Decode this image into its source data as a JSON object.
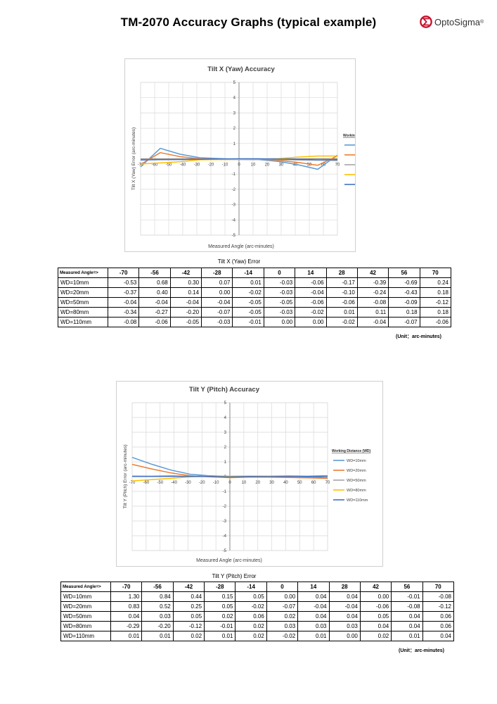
{
  "page": {
    "title": "TM-2070 Accuracy Graphs (typical example)",
    "logo_text": "OptoSigma",
    "logo_reg": "®",
    "brand_color": "#c8102e"
  },
  "series_colors": [
    "#5b9bd5",
    "#ed7d31",
    "#a5a5a5",
    "#ffc000",
    "#4472c4"
  ],
  "chart_data": [
    {
      "type": "line",
      "title": "Tilt X (Yaw) Accuracy",
      "xlabel": "Measured Angle (arc-minutes)",
      "ylabel": "Tilt X (Yaw) Error  (arc-minutes)",
      "x_ticks": [
        -70,
        -60,
        -50,
        -40,
        -30,
        -20,
        -10,
        0,
        10,
        20,
        30,
        40,
        50,
        60,
        70
      ],
      "y_ticks": [
        -5,
        -4,
        -3,
        -2,
        -1,
        0,
        1,
        2,
        3,
        4,
        5
      ],
      "y_tick_labels": [
        "-5",
        "-4",
        "-3",
        "-2",
        "-1",
        "",
        "1",
        "2",
        "3",
        "4",
        "5"
      ],
      "xlim": [
        -70,
        70
      ],
      "ylim": [
        -5,
        5
      ],
      "grid": true,
      "legend_title": "Working Distance (WD)",
      "legend_position": "right",
      "x": [
        -70,
        -56,
        -42,
        -28,
        -14,
        0,
        14,
        28,
        42,
        56,
        70
      ],
      "series": [
        {
          "name": "WD=10mm",
          "values": [
            -0.53,
            0.68,
            0.3,
            0.07,
            0.01,
            -0.03,
            -0.06,
            -0.17,
            -0.39,
            -0.69,
            0.24
          ]
        },
        {
          "name": "WD=20mm",
          "values": [
            -0.37,
            0.4,
            0.14,
            0.0,
            -0.02,
            -0.03,
            -0.04,
            -0.1,
            -0.24,
            -0.43,
            0.18
          ]
        },
        {
          "name": "WD=50mm",
          "values": [
            -0.04,
            -0.04,
            -0.04,
            -0.04,
            -0.05,
            -0.05,
            -0.06,
            -0.06,
            -0.08,
            -0.09,
            -0.12
          ]
        },
        {
          "name": "WD=80mm",
          "values": [
            -0.34,
            -0.27,
            -0.2,
            -0.07,
            -0.05,
            -0.03,
            -0.02,
            0.01,
            0.11,
            0.18,
            0.18
          ]
        },
        {
          "name": "WD=110mm",
          "values": [
            -0.08,
            -0.06,
            -0.05,
            -0.03,
            -0.01,
            0.0,
            0.0,
            -0.02,
            -0.04,
            -0.07,
            -0.06
          ]
        }
      ]
    },
    {
      "type": "line",
      "title": "Tilt Y (Pitch) Accuracy",
      "xlabel": "Measured Angle (arc-minutes)",
      "ylabel": "Tilt Y (Pitch) Error  (arc-minutes)",
      "x_ticks": [
        -70,
        -60,
        -50,
        -40,
        -30,
        -20,
        -10,
        0,
        10,
        20,
        30,
        40,
        50,
        60,
        70
      ],
      "y_ticks": [
        -5,
        -4,
        -3,
        -2,
        -1,
        0,
        1,
        2,
        3,
        4,
        5
      ],
      "y_tick_labels": [
        "-5",
        "-4",
        "-3",
        "-2",
        "-1",
        "0",
        "1",
        "2",
        "3",
        "4",
        "5"
      ],
      "xlim": [
        -70,
        70
      ],
      "ylim": [
        -5,
        5
      ],
      "grid": true,
      "legend_title": "Working Distance (WD)",
      "legend_position": "right",
      "x": [
        -70,
        -56,
        -42,
        -28,
        -14,
        0,
        14,
        28,
        42,
        56,
        70
      ],
      "series": [
        {
          "name": "WD=10mm",
          "values": [
            1.3,
            0.84,
            0.44,
            0.15,
            0.05,
            0.0,
            0.04,
            0.04,
            0.0,
            -0.01,
            -0.08
          ]
        },
        {
          "name": "WD=20mm",
          "values": [
            0.83,
            0.52,
            0.25,
            0.05,
            -0.02,
            -0.07,
            -0.04,
            -0.04,
            -0.06,
            -0.08,
            -0.12
          ]
        },
        {
          "name": "WD=50mm",
          "values": [
            0.04,
            0.03,
            0.05,
            0.02,
            0.06,
            0.02,
            0.04,
            0.04,
            0.05,
            0.04,
            0.06
          ]
        },
        {
          "name": "WD=80mm",
          "values": [
            -0.29,
            -0.2,
            -0.12,
            -0.01,
            0.02,
            0.03,
            0.03,
            0.03,
            0.04,
            0.04,
            0.06
          ]
        },
        {
          "name": "WD=110mm",
          "values": [
            0.01,
            0.01,
            0.02,
            0.01,
            0.02,
            -0.02,
            0.01,
            0.0,
            0.02,
            0.01,
            0.04
          ]
        }
      ]
    }
  ],
  "tables": [
    {
      "caption": "Tilt X (Yaw) Error",
      "corner": "Measured Angle=>",
      "headers": [
        "-70",
        "-56",
        "-42",
        "-28",
        "-14",
        "0",
        "14",
        "28",
        "42",
        "56",
        "70"
      ],
      "rows": [
        {
          "label": "WD=10mm",
          "cells": [
            "-0.53",
            "0.68",
            "0.30",
            "0.07",
            "0.01",
            "-0.03",
            "-0.06",
            "-0.17",
            "-0.39",
            "-0.69",
            "0.24"
          ]
        },
        {
          "label": "WD=20mm",
          "cells": [
            "-0.37",
            "0.40",
            "0.14",
            "0.00",
            "-0.02",
            "-0.03",
            "-0.04",
            "-0.10",
            "-0.24",
            "-0.43",
            "0.18"
          ]
        },
        {
          "label": "WD=50mm",
          "cells": [
            "-0.04",
            "-0.04",
            "-0.04",
            "-0.04",
            "-0.05",
            "-0.05",
            "-0.06",
            "-0.06",
            "-0.08",
            "-0.09",
            "-0.12"
          ]
        },
        {
          "label": "WD=80mm",
          "cells": [
            "-0.34",
            "-0.27",
            "-0.20",
            "-0.07",
            "-0.05",
            "-0.03",
            "-0.02",
            "0.01",
            "0.11",
            "0.18",
            "0.18"
          ]
        },
        {
          "label": "WD=110mm",
          "cells": [
            "-0.08",
            "-0.06",
            "-0.05",
            "-0.03",
            "-0.01",
            "0.00",
            "0.00",
            "-0.02",
            "-0.04",
            "-0.07",
            "-0.06"
          ]
        }
      ],
      "unit": "(Unit：arc-minutes)"
    },
    {
      "caption": "Tilt Y (Pitch) Error",
      "corner": "Measured Angle=>",
      "headers": [
        "-70",
        "-56",
        "-42",
        "-28",
        "-14",
        "0",
        "14",
        "28",
        "42",
        "56",
        "70"
      ],
      "rows": [
        {
          "label": "WD=10mm",
          "cells": [
            "1.30",
            "0.84",
            "0.44",
            "0.15",
            "0.05",
            "0.00",
            "0.04",
            "0.04",
            "0.00",
            "-0.01",
            "-0.08"
          ]
        },
        {
          "label": "WD=20mm",
          "cells": [
            "0.83",
            "0.52",
            "0.25",
            "0.05",
            "-0.02",
            "-0.07",
            "-0.04",
            "-0.04",
            "-0.06",
            "-0.08",
            "-0.12"
          ]
        },
        {
          "label": "WD=50mm",
          "cells": [
            "0.04",
            "0.03",
            "0.05",
            "0.02",
            "0.06",
            "0.02",
            "0.04",
            "0.04",
            "0.05",
            "0.04",
            "0.06"
          ]
        },
        {
          "label": "WD=80mm",
          "cells": [
            "-0.29",
            "-0.20",
            "-0.12",
            "-0.01",
            "0.02",
            "0.03",
            "0.03",
            "0.03",
            "0.04",
            "0.04",
            "0.06"
          ]
        },
        {
          "label": "WD=110mm",
          "cells": [
            "0.01",
            "0.01",
            "0.02",
            "0.01",
            "0.02",
            "-0.02",
            "0.01",
            "0.00",
            "0.02",
            "0.01",
            "0.04"
          ]
        }
      ],
      "unit": "(Unit：arc-minutes)"
    }
  ]
}
